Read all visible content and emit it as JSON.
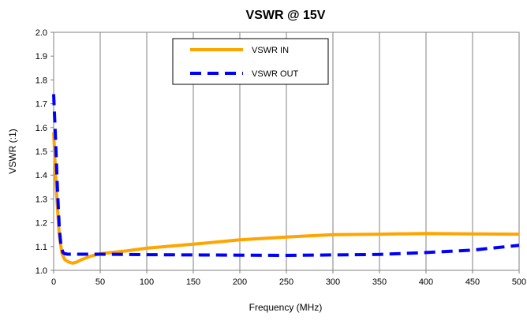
{
  "chart_data": {
    "type": "line",
    "title": "VSWR @ 15V",
    "xlabel": "Frequency (MHz)",
    "ylabel": "VSWR (:1)",
    "xlim": [
      0,
      500
    ],
    "ylim": [
      1.0,
      2.0
    ],
    "x_ticks": [
      "0",
      "50",
      "100",
      "150",
      "200",
      "250",
      "300",
      "350",
      "400",
      "450",
      "500"
    ],
    "y_ticks": [
      "1.0",
      "1.1",
      "1.2",
      "1.3",
      "1.4",
      "1.5",
      "1.6",
      "1.7",
      "1.8",
      "1.9",
      "2.0"
    ],
    "grid": "vertical",
    "legend_position": "top-center",
    "series": [
      {
        "name": "VSWR IN",
        "color": "#FFA500",
        "style": "solid",
        "x": [
          0,
          3,
          6,
          9,
          12,
          16,
          20,
          25,
          30,
          40,
          50,
          75,
          100,
          150,
          200,
          250,
          300,
          350,
          400,
          450,
          500
        ],
        "y": [
          1.58,
          1.33,
          1.15,
          1.07,
          1.045,
          1.035,
          1.03,
          1.035,
          1.045,
          1.06,
          1.07,
          1.08,
          1.093,
          1.11,
          1.128,
          1.14,
          1.15,
          1.152,
          1.155,
          1.153,
          1.152
        ]
      },
      {
        "name": "VSWR OUT",
        "color": "#0000FF",
        "style": "dashed",
        "x": [
          0,
          2,
          4,
          6,
          8,
          10,
          12,
          15,
          20,
          50,
          100,
          150,
          200,
          250,
          300,
          350,
          400,
          450,
          500
        ],
        "y": [
          1.74,
          1.55,
          1.35,
          1.18,
          1.1,
          1.075,
          1.07,
          1.068,
          1.068,
          1.068,
          1.066,
          1.065,
          1.064,
          1.063,
          1.065,
          1.067,
          1.075,
          1.085,
          1.105
        ]
      }
    ]
  }
}
